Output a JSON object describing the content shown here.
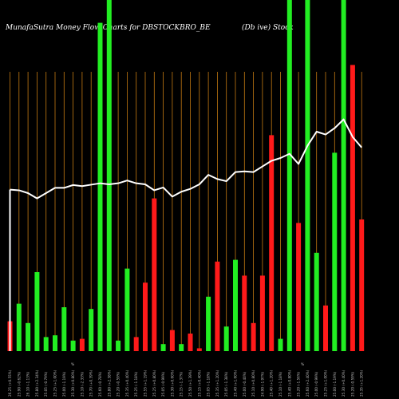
{
  "chart_data": {
    "type": "bar",
    "title_left": "MunafaSutra  Money Flow  Charts for DBSTOCKBRO_BE",
    "title_right": "(Db                                   ive) Stock",
    "colors": {
      "up": "#22ee22",
      "down": "#ff1a1a",
      "line": "#ffffff",
      "grid": "#c47a12",
      "background": "#000000"
    },
    "ylim": [
      0,
      100
    ],
    "line_ylim": [
      0,
      100
    ],
    "grid": "vertical",
    "bars": [
      {
        "value": 8.5,
        "color": "down",
        "label": "26.25 (+0.55%)"
      },
      {
        "value": 13.5,
        "color": "up",
        "label": "25.90 (-0.62%)"
      },
      {
        "value": 8,
        "color": "up",
        "label": "26.10 (-1.13%)"
      },
      {
        "value": 22.5,
        "color": "up",
        "label": "25.80 (+2.34%)"
      },
      {
        "value": 4,
        "color": "up",
        "label": "25.05 (-0.79%)"
      },
      {
        "value": 4.5,
        "color": "up",
        "label": "25.25 (+1.00%)"
      },
      {
        "value": 12.5,
        "color": "up",
        "label": "25.00 (-1.19%)"
      },
      {
        "value": 3,
        "color": "up",
        "label": "25.30 (+0.80%)"
      },
      {
        "value": 3.5,
        "color": "down",
        "label": "25.10 (-2.33%)"
      },
      {
        "value": 12,
        "color": "up",
        "label": "25.70 (+0.39%)"
      },
      {
        "value": 93.5,
        "color": "up",
        "label": "25.60 (-0.78%)"
      },
      {
        "value": 100,
        "color": "up",
        "label": "25.80 (+2.38%)"
      },
      {
        "value": 3,
        "color": "up",
        "label": "25.20 (-0.59%)"
      },
      {
        "value": 23.5,
        "color": "up",
        "label": "25.35 (+0.40%)"
      },
      {
        "value": 4,
        "color": "down",
        "label": "25.25 (-1.18%)"
      },
      {
        "value": 19.5,
        "color": "down",
        "label": "25.55 (+1.19%)"
      },
      {
        "value": 43.5,
        "color": "down",
        "label": "25.25 (+0.80%)"
      },
      {
        "value": 2,
        "color": "up",
        "label": "25.05 (-0.99%)"
      },
      {
        "value": 6,
        "color": "down",
        "label": "25.30 (+0.60%)"
      },
      {
        "value": 2,
        "color": "up",
        "label": "25.15 (-1.37%)"
      },
      {
        "value": 5,
        "color": "down",
        "label": "25.50 (+1.39%)"
      },
      {
        "value": 0.8,
        "color": "down",
        "label": "25.15 (+0.40%)"
      },
      {
        "value": 15.5,
        "color": "up",
        "label": "25.05 (-1.18%)"
      },
      {
        "value": 25.5,
        "color": "down",
        "label": "25.35 (+1.20%)"
      },
      {
        "value": 7,
        "color": "up",
        "label": "25.05 (-1.38%)"
      },
      {
        "value": 26,
        "color": "up",
        "label": "25.40 (+1.60%)"
      },
      {
        "value": 21.5,
        "color": "down",
        "label": "25.00 (-0.40%)"
      },
      {
        "value": 8,
        "color": "down",
        "label": "25.10 (+0.80%)"
      },
      {
        "value": 21.5,
        "color": "down",
        "label": "24.90 (-1.97%)"
      },
      {
        "value": 61.5,
        "color": "down",
        "label": "25.40 (+1.20%)"
      },
      {
        "value": 3.5,
        "color": "up",
        "label": "25.10 (-1.18%)"
      },
      {
        "value": 100,
        "color": "up",
        "label": "25.40 (+0.80%)"
      },
      {
        "value": 36.5,
        "color": "down",
        "label": "25.20 (-1.56%)"
      },
      {
        "value": 100,
        "color": "up",
        "label": "25.60 (+2.40%)"
      },
      {
        "value": 28,
        "color": "up",
        "label": "25.00 (-0.99%)"
      },
      {
        "value": 13,
        "color": "down",
        "label": "25.25 (+1.00%)"
      },
      {
        "value": 56.5,
        "color": "up",
        "label": "25.00 (-1.19%)"
      },
      {
        "value": 100,
        "color": "up",
        "label": "25.30 (+0.40%)"
      },
      {
        "value": 81.5,
        "color": "down",
        "label": "25.20 (-0.59%)"
      },
      {
        "value": 37.5,
        "color": "down",
        "label": "25.35 (+1.20%)"
      }
    ],
    "money_flow_line": [
      46,
      45.8,
      45,
      43.5,
      45,
      46.5,
      46.5,
      47.3,
      47,
      47.4,
      47.8,
      47.5,
      47.8,
      48.6,
      47.8,
      47.5,
      45.8,
      46.6,
      44,
      45.4,
      46.2,
      47.5,
      50.2,
      49,
      48.4,
      51,
      51.2,
      51,
      52.6,
      54.2,
      55,
      56.2,
      53.3,
      58.5,
      62.5,
      61.7,
      63.5,
      66,
      61,
      58
    ]
  }
}
